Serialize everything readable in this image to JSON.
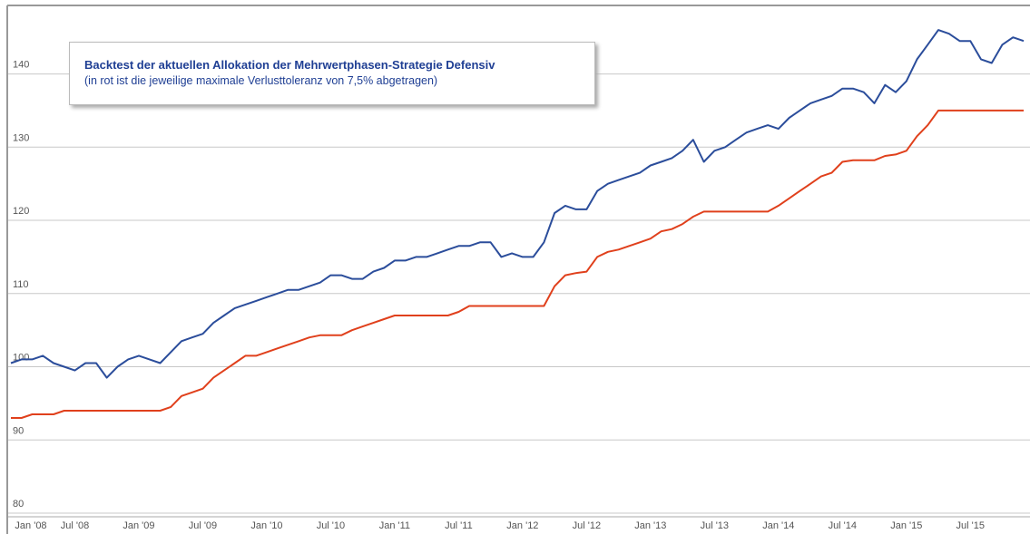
{
  "chart_data": {
    "type": "line",
    "title": "Backtest der aktuellen Allokation der Mehrwertphasen-Strategie Defensiv",
    "subtitle": "(in rot ist die jeweilige maximale Verlusttoleranz von 7,5% abgetragen)",
    "categories": [
      "Jan '08",
      null,
      null,
      null,
      null,
      null,
      "Jul '08",
      null,
      null,
      null,
      null,
      null,
      "Jan '09",
      null,
      null,
      null,
      null,
      null,
      "Jul '09",
      null,
      null,
      null,
      null,
      null,
      "Jan '10",
      null,
      null,
      null,
      null,
      null,
      "Jul '10",
      null,
      null,
      null,
      null,
      null,
      "Jan '11",
      null,
      null,
      null,
      null,
      null,
      "Jul '11",
      null,
      null,
      null,
      null,
      null,
      "Jan '12",
      null,
      null,
      null,
      null,
      null,
      "Jul '12",
      null,
      null,
      null,
      null,
      null,
      "Jan '13",
      null,
      null,
      null,
      null,
      null,
      "Jul '13",
      null,
      null,
      null,
      null,
      null,
      "Jan '14",
      null,
      null,
      null,
      null,
      null,
      "Jul '14",
      null,
      null,
      null,
      null,
      null,
      "Jan '15",
      null,
      null,
      null,
      null,
      null,
      "Jul '15",
      null,
      null,
      null,
      null,
      null
    ],
    "series": [
      {
        "color": "#2b4d9b",
        "values": [
          100.5,
          101,
          101,
          101.5,
          100.5,
          100,
          99.5,
          100.5,
          100.5,
          98.5,
          100,
          101,
          101.5,
          101,
          100.5,
          102,
          103.5,
          104,
          104.5,
          106,
          107,
          108,
          108.5,
          109,
          109.5,
          110,
          110.5,
          110.5,
          111,
          111.5,
          112.5,
          112.5,
          112,
          112,
          113,
          113.5,
          114.5,
          114.5,
          115,
          115,
          115.5,
          116,
          116.5,
          116.5,
          117,
          117,
          115,
          115.5,
          115,
          115,
          117,
          121,
          122,
          121.5,
          121.5,
          124,
          125,
          125.5,
          126,
          126.5,
          127.5,
          128,
          128.5,
          129.5,
          131,
          128,
          129.5,
          130,
          131,
          132,
          132.5,
          133,
          132.5,
          134,
          135,
          136,
          136.5,
          137,
          138,
          138,
          137.5,
          136,
          138.5,
          137.5,
          139,
          142,
          144,
          146,
          145.5,
          144.5,
          144.5,
          142,
          141.5,
          144,
          145,
          144.5
        ]
      },
      {
        "color": "#e0401c",
        "values": [
          93,
          93,
          93.5,
          93.5,
          93.5,
          94,
          94,
          94,
          94,
          94,
          94,
          94,
          94,
          94,
          94,
          94.5,
          96,
          96.5,
          97,
          98.5,
          99.5,
          100.5,
          101.5,
          101.5,
          102,
          102.5,
          103,
          103.5,
          104,
          104.3,
          104.3,
          104.3,
          105,
          105.5,
          106,
          106.5,
          107,
          107,
          107,
          107,
          107,
          107,
          107.5,
          108.3,
          108.3,
          108.3,
          108.3,
          108.3,
          108.3,
          108.3,
          108.3,
          111,
          112.5,
          112.8,
          113,
          115,
          115.7,
          116,
          116.5,
          117,
          117.5,
          118.5,
          118.8,
          119.5,
          120.5,
          121.2,
          121.2,
          121.2,
          121.2,
          121.2,
          121.2,
          121.2,
          122,
          123,
          124,
          125,
          126,
          126.5,
          128,
          128.2,
          128.2,
          128.2,
          128.8,
          129,
          129.5,
          131.5,
          133,
          135,
          135,
          135,
          135,
          135,
          135,
          135,
          135,
          135
        ]
      }
    ],
    "ylim": [
      80,
      149
    ],
    "yticks": [
      80,
      90,
      100,
      110,
      120,
      130,
      140
    ],
    "grid": true
  }
}
